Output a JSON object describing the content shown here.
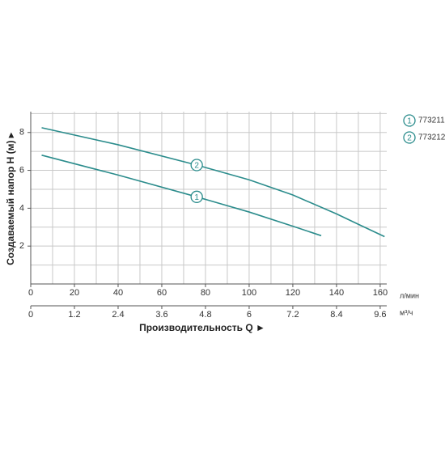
{
  "chart_data": {
    "type": "line",
    "y_label": "Создаваемый напор H (м) ▸",
    "x_label": "Производительность Q ►",
    "x_unit": "л/мин",
    "x2_unit": "м³/ч",
    "xlim": [
      0,
      163
    ],
    "xticks": [
      0,
      20,
      40,
      60,
      80,
      100,
      120,
      140,
      160
    ],
    "x2lim": [
      0,
      9.78
    ],
    "x2ticks": [
      0,
      1.2,
      2.4,
      3.6,
      4.8,
      6.0,
      7.2,
      8.4,
      9.6
    ],
    "ylim": [
      0,
      9.1
    ],
    "yticks": [
      2,
      4,
      6,
      8
    ],
    "xgrid": [
      0,
      10,
      20,
      30,
      40,
      50,
      60,
      70,
      80,
      90,
      100,
      110,
      120,
      130,
      140,
      150,
      160
    ],
    "ygrid": [
      1,
      2,
      3,
      4,
      5,
      6,
      7,
      8,
      9
    ],
    "grid": true,
    "series": [
      {
        "name": "773211",
        "label": "1",
        "color": "#2b8c8c",
        "x": [
          5,
          40,
          76,
          100,
          120,
          133
        ],
        "values": [
          6.8,
          5.75,
          4.6,
          3.8,
          3.05,
          2.55
        ]
      },
      {
        "name": "773212",
        "label": "2",
        "color": "#2b8c8c",
        "x": [
          5,
          40,
          76,
          100,
          120,
          140,
          150,
          162
        ],
        "values": [
          8.25,
          7.35,
          6.28,
          5.5,
          4.7,
          3.7,
          3.15,
          2.5
        ]
      }
    ]
  }
}
